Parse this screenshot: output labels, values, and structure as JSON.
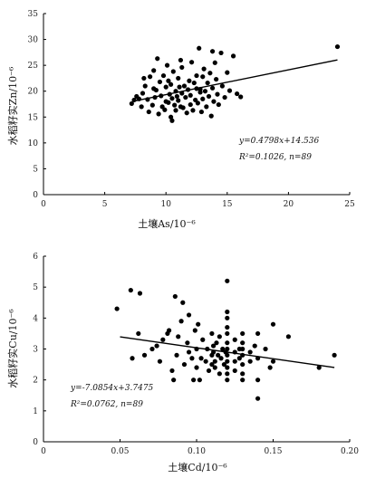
{
  "chart_data": [
    {
      "type": "scatter",
      "xlabel": "土壤As/10⁻⁶",
      "ylabel": "水稻籽实Zn/10⁻⁶",
      "xlim": [
        0,
        25
      ],
      "ylim": [
        0,
        35
      ],
      "xticks": [
        "0",
        "5",
        "10",
        "15",
        "20",
        "25"
      ],
      "yticks": [
        "0",
        "5",
        "10",
        "15",
        "20",
        "25",
        "30",
        "35"
      ],
      "grid": false,
      "trendline": {
        "slope": 0.4798,
        "intercept": 14.536,
        "x_range": [
          7.3,
          24
        ]
      },
      "annotation": [
        "y=0.4798x+14.536",
        "R²=0.1026, n=89"
      ],
      "points": [
        [
          7.2,
          17.6
        ],
        [
          7.4,
          18.3
        ],
        [
          7.6,
          19.0
        ],
        [
          7.8,
          18.5
        ],
        [
          8.0,
          17.0
        ],
        [
          8.1,
          19.6
        ],
        [
          8.3,
          21.0
        ],
        [
          8.5,
          18.4
        ],
        [
          8.6,
          16.0
        ],
        [
          8.7,
          22.8
        ],
        [
          8.9,
          17.3
        ],
        [
          9.0,
          24.0
        ],
        [
          9.1,
          18.8
        ],
        [
          9.2,
          20.2
        ],
        [
          9.3,
          26.3
        ],
        [
          9.4,
          15.6
        ],
        [
          9.5,
          21.8
        ],
        [
          9.6,
          19.1
        ],
        [
          9.7,
          17.0
        ],
        [
          9.8,
          23.0
        ],
        [
          9.9,
          16.4
        ],
        [
          10.0,
          20.8
        ],
        [
          10.0,
          18.0
        ],
        [
          10.1,
          25.0
        ],
        [
          10.2,
          22.0
        ],
        [
          10.2,
          17.8
        ],
        [
          10.3,
          19.4
        ],
        [
          10.4,
          15.0
        ],
        [
          10.4,
          21.3
        ],
        [
          10.5,
          18.6
        ],
        [
          10.6,
          23.8
        ],
        [
          10.7,
          17.3
        ],
        [
          10.8,
          20.0
        ],
        [
          10.8,
          16.3
        ],
        [
          10.9,
          19.0
        ],
        [
          11.0,
          22.5
        ],
        [
          11.0,
          18.2
        ],
        [
          11.1,
          20.8
        ],
        [
          11.2,
          17.0
        ],
        [
          11.3,
          24.6
        ],
        [
          11.3,
          19.6
        ],
        [
          11.4,
          16.8
        ],
        [
          11.5,
          21.0
        ],
        [
          11.6,
          18.8
        ],
        [
          11.7,
          15.8
        ],
        [
          11.8,
          20.3
        ],
        [
          11.9,
          22.0
        ],
        [
          12.0,
          17.4
        ],
        [
          12.0,
          19.2
        ],
        [
          12.1,
          25.6
        ],
        [
          12.2,
          16.3
        ],
        [
          12.3,
          21.6
        ],
        [
          12.4,
          18.3
        ],
        [
          12.5,
          23.0
        ],
        [
          12.5,
          20.5
        ],
        [
          12.6,
          17.7
        ],
        [
          12.7,
          28.3
        ],
        [
          12.8,
          19.8
        ],
        [
          12.9,
          16.0
        ],
        [
          13.0,
          22.8
        ],
        [
          13.0,
          18.5
        ],
        [
          13.1,
          24.3
        ],
        [
          13.2,
          20.0
        ],
        [
          13.3,
          17.0
        ],
        [
          13.4,
          21.6
        ],
        [
          13.5,
          19.0
        ],
        [
          13.6,
          23.5
        ],
        [
          13.7,
          15.2
        ],
        [
          13.8,
          20.6
        ],
        [
          13.9,
          18.0
        ],
        [
          14.0,
          25.5
        ],
        [
          14.1,
          22.3
        ],
        [
          14.2,
          19.4
        ],
        [
          14.3,
          17.4
        ],
        [
          14.5,
          27.4
        ],
        [
          14.6,
          21.0
        ],
        [
          14.8,
          18.8
        ],
        [
          15.0,
          23.6
        ],
        [
          15.2,
          20.1
        ],
        [
          15.5,
          26.8
        ],
        [
          15.8,
          19.5
        ],
        [
          16.1,
          18.9
        ],
        [
          9.0,
          20.5
        ],
        [
          10.5,
          14.3
        ],
        [
          11.2,
          26.0
        ],
        [
          12.8,
          20.4
        ],
        [
          8.2,
          22.5
        ],
        [
          13.8,
          27.7
        ],
        [
          24.0,
          28.6
        ]
      ]
    },
    {
      "type": "scatter",
      "xlabel": "土壤Cd/10⁻⁶",
      "ylabel": "水稻籽实Cu/10⁻⁶",
      "xlim": [
        0,
        0.2
      ],
      "ylim": [
        0,
        6
      ],
      "xticks": [
        "0",
        "0.05",
        "0.10",
        "0.15",
        "0.20"
      ],
      "yticks": [
        "0",
        "1",
        "2",
        "3",
        "4",
        "5",
        "6"
      ],
      "grid": false,
      "trendline": {
        "slope": -7.0854,
        "intercept": 3.7475,
        "x_range": [
          0.05,
          0.19
        ]
      },
      "annotation": [
        "y=-7.0854x+3.7475",
        "R²=0.0762, n=89"
      ],
      "points": [
        [
          0.048,
          4.3
        ],
        [
          0.057,
          4.9
        ],
        [
          0.063,
          4.8
        ],
        [
          0.058,
          2.7
        ],
        [
          0.062,
          3.5
        ],
        [
          0.066,
          2.8
        ],
        [
          0.071,
          3.0
        ],
        [
          0.074,
          3.1
        ],
        [
          0.076,
          2.6
        ],
        [
          0.078,
          3.3
        ],
        [
          0.081,
          3.5
        ],
        [
          0.084,
          2.3
        ],
        [
          0.085,
          2.0
        ],
        [
          0.086,
          4.7
        ],
        [
          0.087,
          2.8
        ],
        [
          0.088,
          3.4
        ],
        [
          0.09,
          3.9
        ],
        [
          0.091,
          4.5
        ],
        [
          0.092,
          2.5
        ],
        [
          0.094,
          3.2
        ],
        [
          0.095,
          2.9
        ],
        [
          0.097,
          2.7
        ],
        [
          0.098,
          2.0
        ],
        [
          0.099,
          3.6
        ],
        [
          0.1,
          3.0
        ],
        [
          0.1,
          2.4
        ],
        [
          0.101,
          3.8
        ],
        [
          0.102,
          2.0
        ],
        [
          0.103,
          2.7
        ],
        [
          0.104,
          3.3
        ],
        [
          0.106,
          2.6
        ],
        [
          0.107,
          3.0
        ],
        [
          0.108,
          2.3
        ],
        [
          0.11,
          3.5
        ],
        [
          0.11,
          2.8
        ],
        [
          0.11,
          2.5
        ],
        [
          0.111,
          2.9
        ],
        [
          0.111,
          3.1
        ],
        [
          0.112,
          2.6
        ],
        [
          0.112,
          2.4
        ],
        [
          0.113,
          3.2
        ],
        [
          0.114,
          2.8
        ],
        [
          0.115,
          2.2
        ],
        [
          0.115,
          3.4
        ],
        [
          0.116,
          2.7
        ],
        [
          0.117,
          3.0
        ],
        [
          0.118,
          2.5
        ],
        [
          0.119,
          2.9
        ],
        [
          0.12,
          5.2
        ],
        [
          0.12,
          4.2
        ],
        [
          0.12,
          4.0
        ],
        [
          0.12,
          3.7
        ],
        [
          0.12,
          3.5
        ],
        [
          0.12,
          3.2
        ],
        [
          0.12,
          3.0
        ],
        [
          0.12,
          2.8
        ],
        [
          0.12,
          2.6
        ],
        [
          0.12,
          2.4
        ],
        [
          0.12,
          2.2
        ],
        [
          0.12,
          2.0
        ],
        [
          0.125,
          3.3
        ],
        [
          0.125,
          2.9
        ],
        [
          0.125,
          2.6
        ],
        [
          0.125,
          2.3
        ],
        [
          0.128,
          3.0
        ],
        [
          0.128,
          2.7
        ],
        [
          0.13,
          3.5
        ],
        [
          0.13,
          3.2
        ],
        [
          0.13,
          3.0
        ],
        [
          0.13,
          2.8
        ],
        [
          0.13,
          2.5
        ],
        [
          0.13,
          2.2
        ],
        [
          0.13,
          2.0
        ],
        [
          0.135,
          2.9
        ],
        [
          0.135,
          2.6
        ],
        [
          0.138,
          3.1
        ],
        [
          0.14,
          3.5
        ],
        [
          0.14,
          2.7
        ],
        [
          0.14,
          2.0
        ],
        [
          0.14,
          1.4
        ],
        [
          0.145,
          3.0
        ],
        [
          0.148,
          2.4
        ],
        [
          0.15,
          2.6
        ],
        [
          0.15,
          3.8
        ],
        [
          0.16,
          3.4
        ],
        [
          0.18,
          2.4
        ],
        [
          0.19,
          2.8
        ],
        [
          0.095,
          4.1
        ],
        [
          0.082,
          3.6
        ]
      ]
    }
  ]
}
